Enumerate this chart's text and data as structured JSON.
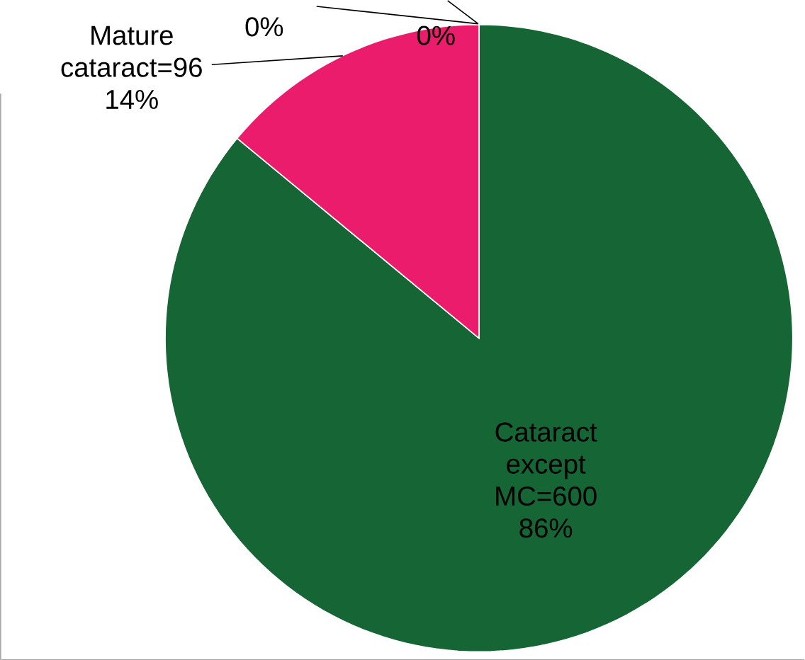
{
  "chart_data": {
    "type": "pie",
    "categories": [
      "Cataract except MC=600",
      "Mature cataract=96",
      null,
      null
    ],
    "values": [
      86,
      14,
      0,
      0
    ],
    "value_labels": [
      "86%",
      "14%",
      "0%",
      "0%"
    ],
    "colors": [
      "#166534",
      "#ec1c6c",
      "#4472c4",
      "#a5a5a5"
    ],
    "legend": false
  }
}
